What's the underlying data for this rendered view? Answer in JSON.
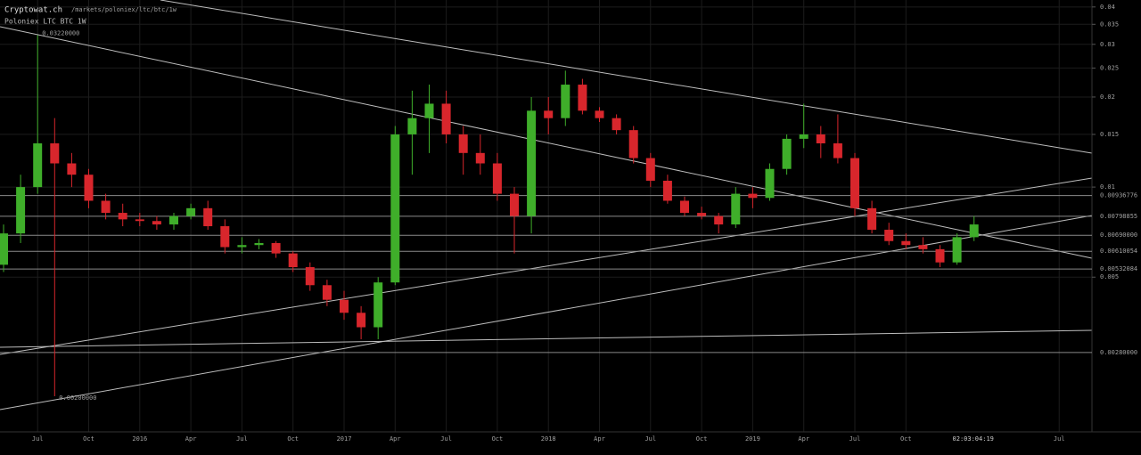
{
  "header": {
    "site": "Cryptowat.ch",
    "path": "/markets/poloniex/ltc/btc/1w",
    "market": "Poloniex LTC BTC 1W"
  },
  "chart_data": {
    "type": "candlestick",
    "log_scale": true,
    "grid": true,
    "up_color": "#3fae2a",
    "down_color": "#d8262c",
    "level_color": "#8a8a8a",
    "categories": [
      null,
      null,
      "Jul",
      null,
      null,
      "Oct",
      null,
      null,
      "2016",
      null,
      null,
      "Apr",
      null,
      null,
      "Jul",
      null,
      null,
      "Oct",
      null,
      null,
      "2017",
      null,
      null,
      "Apr",
      null,
      null,
      "Jul",
      null,
      null,
      "Oct",
      null,
      null,
      "2018",
      null,
      null,
      "Apr",
      null,
      null,
      "Jul",
      null,
      null,
      "Oct",
      null,
      null,
      "2019",
      null,
      null,
      "Apr",
      null,
      null,
      "Jul",
      null,
      null,
      "Oct",
      null,
      null,
      null,
      null,
      null,
      null,
      null,
      null,
      "Jul"
    ],
    "open": [
      0.0055,
      0.007,
      0.01,
      0.014,
      0.012,
      0.011,
      0.009,
      0.0082,
      0.0078,
      0.0077,
      0.0075,
      0.008,
      0.0085,
      0.0074,
      0.0063,
      0.0064,
      0.0065,
      0.006,
      0.0054,
      0.0047,
      0.0042,
      0.0038,
      0.0034,
      0.0048,
      0.015,
      0.017,
      0.019,
      0.015,
      0.013,
      0.012,
      0.0095,
      0.008,
      0.018,
      0.017,
      0.022,
      0.018,
      0.017,
      0.0155,
      0.0125,
      0.0105,
      0.009,
      0.0082,
      0.008,
      0.0075,
      0.0095,
      0.0092,
      0.0115,
      0.0145,
      0.015,
      0.014,
      0.0125,
      0.0085,
      0.0072,
      0.0066,
      0.0064,
      0.0062,
      0.0056,
      0.0068,
      null,
      null,
      null,
      null,
      null
    ],
    "high": [
      0.0075,
      0.011,
      0.0322,
      0.017,
      0.013,
      0.0115,
      0.0095,
      0.0088,
      0.0082,
      0.008,
      0.0082,
      0.0088,
      0.009,
      0.0078,
      0.0068,
      0.0067,
      0.0066,
      0.0061,
      0.0056,
      0.0049,
      0.0045,
      0.004,
      0.005,
      0.016,
      0.021,
      0.022,
      0.021,
      0.016,
      0.015,
      0.013,
      0.01,
      0.02,
      0.02,
      0.0245,
      0.023,
      0.0185,
      0.0175,
      0.016,
      0.013,
      0.011,
      0.0093,
      0.0086,
      0.0082,
      0.01,
      0.01,
      0.012,
      0.015,
      0.019,
      0.016,
      0.0175,
      0.013,
      0.009,
      0.0076,
      0.007,
      0.0068,
      0.0064,
      0.007,
      0.008,
      null,
      null,
      null,
      null,
      null
    ],
    "low": [
      0.0052,
      0.0065,
      0.0095,
      0.002,
      0.01,
      0.0085,
      0.0078,
      0.0074,
      0.0074,
      0.0072,
      0.0072,
      0.0078,
      0.0072,
      0.006,
      0.006,
      0.0062,
      0.0058,
      0.0052,
      0.0045,
      0.004,
      0.0036,
      0.0031,
      0.0031,
      0.0047,
      0.011,
      0.013,
      0.014,
      0.011,
      0.011,
      0.009,
      0.006,
      0.007,
      0.015,
      0.016,
      0.0175,
      0.0165,
      0.015,
      0.012,
      0.01,
      0.0088,
      0.008,
      0.0078,
      0.007,
      0.0073,
      0.0085,
      0.009,
      0.011,
      0.0135,
      0.0125,
      0.012,
      0.008,
      0.007,
      0.0064,
      0.0062,
      0.006,
      0.0054,
      0.0055,
      0.0066,
      null,
      null,
      null,
      null,
      null
    ],
    "close": [
      0.007,
      0.01,
      0.014,
      0.012,
      0.011,
      0.009,
      0.0082,
      0.0078,
      0.0077,
      0.0075,
      0.008,
      0.0085,
      0.0074,
      0.0063,
      0.0064,
      0.0065,
      0.006,
      0.0054,
      0.0047,
      0.0042,
      0.0038,
      0.0034,
      0.0048,
      0.015,
      0.017,
      0.019,
      0.015,
      0.013,
      0.012,
      0.0095,
      0.008,
      0.018,
      0.017,
      0.022,
      0.018,
      0.017,
      0.0155,
      0.0125,
      0.0105,
      0.009,
      0.0082,
      0.008,
      0.0075,
      0.0095,
      0.0092,
      0.0115,
      0.0145,
      0.015,
      0.014,
      0.0125,
      0.0085,
      0.0072,
      0.0066,
      0.0064,
      0.0062,
      0.0056,
      0.0068,
      0.0075,
      null,
      null,
      null,
      null,
      null
    ],
    "ylim": [
      0.00152,
      0.0422
    ],
    "yticks": [
      0.005,
      0.01,
      0.015,
      0.02,
      0.025,
      0.03,
      0.035,
      0.04
    ],
    "levels": [
      {
        "value": 0.00936776,
        "label": "0.00936776"
      },
      {
        "value": 0.00798855,
        "label": "0.00798855"
      },
      {
        "value": 0.0069,
        "label": "0.00690000"
      },
      {
        "value": 0.00610054,
        "label": "0.00610054"
      },
      {
        "value": 0.00532084,
        "label": "0.00532084"
      },
      {
        "value": 0.0028,
        "label": "0.00280000"
      }
    ],
    "annotations": [
      {
        "value": 0.0322,
        "label": "0.03220000"
      },
      {
        "value": 0.002,
        "label": "0.00200000"
      }
    ],
    "countdown": "02:03:04:19"
  }
}
